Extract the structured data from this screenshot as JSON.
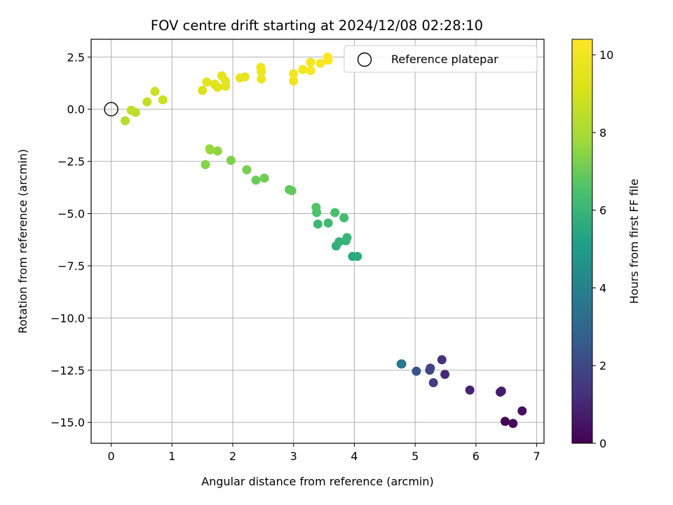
{
  "chart_data": {
    "type": "scatter",
    "title": "FOV centre drift starting at 2024/12/08 02:28:10",
    "xlabel": "Angular distance from reference (arcmin)",
    "ylabel": "Rotation from reference (arcmin)",
    "xlim": [
      -0.33,
      7.12
    ],
    "ylim": [
      -16.0,
      3.35
    ],
    "xticks": [
      0,
      1,
      2,
      3,
      4,
      5,
      6,
      7
    ],
    "xtick_labels": [
      "0",
      "1",
      "2",
      "3",
      "4",
      "5",
      "6",
      "7"
    ],
    "yticks": [
      2.5,
      0.0,
      -2.5,
      -5.0,
      -7.5,
      -10.0,
      -12.5,
      -15.0
    ],
    "ytick_labels": [
      "2.5",
      "0.0",
      "−2.5",
      "−5.0",
      "−7.5",
      "−10.0",
      "−12.5",
      "−15.0"
    ],
    "grid": true,
    "legend": {
      "position": "upper-right",
      "entries": [
        "Reference platepar"
      ]
    },
    "reference_point": {
      "x": 0.0,
      "y": 0.0,
      "marker": "open-circle"
    },
    "colorbar": {
      "label": "Hours from first FF file",
      "colormap": "viridis",
      "range": [
        0,
        10.4
      ],
      "ticks": [
        0,
        2,
        4,
        6,
        8,
        10
      ],
      "tick_labels": [
        "0",
        "2",
        "4",
        "6",
        "8",
        "10"
      ]
    },
    "points": [
      {
        "x": 6.48,
        "y": -14.95,
        "c": 0.0
      },
      {
        "x": 6.61,
        "y": -15.05,
        "c": 0.2
      },
      {
        "x": 6.76,
        "y": -14.45,
        "c": 0.4
      },
      {
        "x": 6.4,
        "y": -13.55,
        "c": 0.6
      },
      {
        "x": 6.42,
        "y": -13.5,
        "c": 0.7
      },
      {
        "x": 5.9,
        "y": -13.45,
        "c": 0.9
      },
      {
        "x": 5.49,
        "y": -12.7,
        "c": 1.1
      },
      {
        "x": 5.44,
        "y": -12.0,
        "c": 1.3
      },
      {
        "x": 5.3,
        "y": -13.1,
        "c": 1.6
      },
      {
        "x": 5.25,
        "y": -12.4,
        "c": 1.8
      },
      {
        "x": 5.24,
        "y": -12.5,
        "c": 2.0
      },
      {
        "x": 5.02,
        "y": -12.55,
        "c": 2.3
      },
      {
        "x": 4.77,
        "y": -12.2,
        "c": 3.3
      },
      {
        "x": 4.78,
        "y": -12.2,
        "c": 3.6
      },
      {
        "x": 3.97,
        "y": -7.05,
        "c": 5.5
      },
      {
        "x": 4.05,
        "y": -7.05,
        "c": 5.6
      },
      {
        "x": 3.7,
        "y": -6.55,
        "c": 5.7
      },
      {
        "x": 3.75,
        "y": -6.35,
        "c": 5.8
      },
      {
        "x": 3.86,
        "y": -6.3,
        "c": 5.9
      },
      {
        "x": 3.88,
        "y": -6.15,
        "c": 6.0
      },
      {
        "x": 3.4,
        "y": -5.5,
        "c": 6.1
      },
      {
        "x": 3.57,
        "y": -5.45,
        "c": 6.2
      },
      {
        "x": 3.83,
        "y": -5.2,
        "c": 6.3
      },
      {
        "x": 3.68,
        "y": -4.95,
        "c": 6.4
      },
      {
        "x": 3.38,
        "y": -4.95,
        "c": 6.5
      },
      {
        "x": 3.37,
        "y": -4.7,
        "c": 6.6
      },
      {
        "x": 2.93,
        "y": -3.85,
        "c": 6.8
      },
      {
        "x": 2.97,
        "y": -3.9,
        "c": 6.9
      },
      {
        "x": 2.38,
        "y": -3.4,
        "c": 7.0
      },
      {
        "x": 2.52,
        "y": -3.3,
        "c": 7.1
      },
      {
        "x": 2.23,
        "y": -2.9,
        "c": 7.2
      },
      {
        "x": 1.97,
        "y": -2.45,
        "c": 7.3
      },
      {
        "x": 1.55,
        "y": -2.65,
        "c": 7.4
      },
      {
        "x": 1.75,
        "y": -2.0,
        "c": 7.5
      },
      {
        "x": 1.62,
        "y": -1.9,
        "c": 7.6
      },
      {
        "x": 1.63,
        "y": -1.95,
        "c": 7.7
      },
      {
        "x": 0.23,
        "y": -0.55,
        "c": 8.3
      },
      {
        "x": 0.4,
        "y": -0.15,
        "c": 8.4
      },
      {
        "x": 0.33,
        "y": -0.05,
        "c": 8.5
      },
      {
        "x": 0.59,
        "y": 0.35,
        "c": 8.6
      },
      {
        "x": 0.85,
        "y": 0.45,
        "c": 8.7
      },
      {
        "x": 0.72,
        "y": 0.85,
        "c": 8.8
      },
      {
        "x": 1.5,
        "y": 0.9,
        "c": 9.2
      },
      {
        "x": 1.75,
        "y": 1.05,
        "c": 9.3
      },
      {
        "x": 1.88,
        "y": 1.1,
        "c": 9.4
      },
      {
        "x": 1.7,
        "y": 1.2,
        "c": 9.4
      },
      {
        "x": 1.57,
        "y": 1.3,
        "c": 9.5
      },
      {
        "x": 1.88,
        "y": 1.35,
        "c": 9.5
      },
      {
        "x": 1.82,
        "y": 1.6,
        "c": 9.6
      },
      {
        "x": 2.12,
        "y": 1.5,
        "c": 9.7
      },
      {
        "x": 2.2,
        "y": 1.55,
        "c": 9.7
      },
      {
        "x": 2.47,
        "y": 1.45,
        "c": 9.8
      },
      {
        "x": 2.47,
        "y": 1.8,
        "c": 9.8
      },
      {
        "x": 2.46,
        "y": 2.0,
        "c": 9.9
      },
      {
        "x": 3.0,
        "y": 1.35,
        "c": 9.9
      },
      {
        "x": 3.0,
        "y": 1.7,
        "c": 10.0
      },
      {
        "x": 3.15,
        "y": 1.9,
        "c": 10.0
      },
      {
        "x": 3.28,
        "y": 1.85,
        "c": 10.1
      },
      {
        "x": 3.28,
        "y": 2.25,
        "c": 10.1
      },
      {
        "x": 3.44,
        "y": 2.2,
        "c": 10.2
      },
      {
        "x": 3.57,
        "y": 2.35,
        "c": 10.3
      },
      {
        "x": 3.56,
        "y": 2.5,
        "c": 10.4
      }
    ]
  }
}
